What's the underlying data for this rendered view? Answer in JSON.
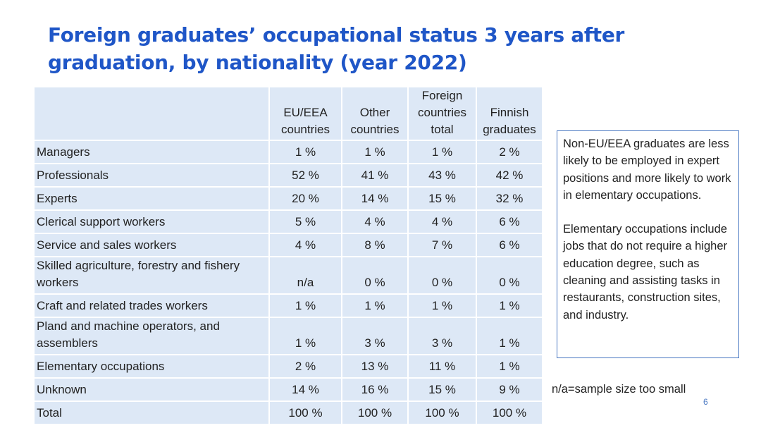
{
  "slide": {
    "title_line1": "Foreign graduates’ occupational status 3 years after",
    "title_line2": "graduation, by nationality (year 2022)",
    "page_number": "6"
  },
  "table": {
    "headers": [
      [
        "",
        ""
      ],
      [
        "EU/EEA",
        "countries"
      ],
      [
        "Other",
        "countries"
      ],
      [
        "Foreign",
        "countries",
        "total"
      ],
      [
        "Finnish",
        "graduates"
      ]
    ],
    "rows": [
      {
        "label": [
          "Managers"
        ],
        "values": [
          "1 %",
          "1 %",
          "1 %",
          "2 %"
        ]
      },
      {
        "label": [
          "Professionals"
        ],
        "values": [
          "52 %",
          "41 %",
          "43 %",
          "42 %"
        ]
      },
      {
        "label": [
          "Experts"
        ],
        "values": [
          "20 %",
          "14 %",
          "15 %",
          "32 %"
        ]
      },
      {
        "label": [
          "Clerical support workers"
        ],
        "values": [
          "5 %",
          "4 %",
          "4 %",
          "6 %"
        ]
      },
      {
        "label": [
          "Service and sales workers"
        ],
        "values": [
          "4 %",
          "8 %",
          "7 %",
          "6 %"
        ]
      },
      {
        "label": [
          "Skilled agriculture, forestry and fishery",
          "workers"
        ],
        "values": [
          "n/a",
          "0 %",
          "0 %",
          "0 %"
        ]
      },
      {
        "label": [
          "Craft and related trades workers"
        ],
        "values": [
          "1 %",
          "1 %",
          "1 %",
          "1 %"
        ]
      },
      {
        "label": [
          "Pland and machine operators, and",
          "assemblers"
        ],
        "values": [
          "1 %",
          "3 %",
          "3 %",
          "1 %"
        ]
      },
      {
        "label": [
          "Elementary occupations"
        ],
        "values": [
          "2 %",
          "13 %",
          "11 %",
          "1 %"
        ]
      },
      {
        "label": [
          "Unknown"
        ],
        "values": [
          "14 %",
          "16 %",
          "15 %",
          "9 %"
        ]
      },
      {
        "label": [
          "Total"
        ],
        "values": [
          "100 %",
          "100 %",
          "100 %",
          "100 %"
        ]
      }
    ]
  },
  "note": {
    "paragraph1": "Non-EU/EEA graduates are less likely to be employed in expert positions and more likely to work in elementary occupations.",
    "paragraph2": "Elementary occupations include jobs that do not require a higher education degree, such as cleaning and assisting tasks in restaurants, construction sites, and industry."
  },
  "footnote": "n/a=sample size too small"
}
